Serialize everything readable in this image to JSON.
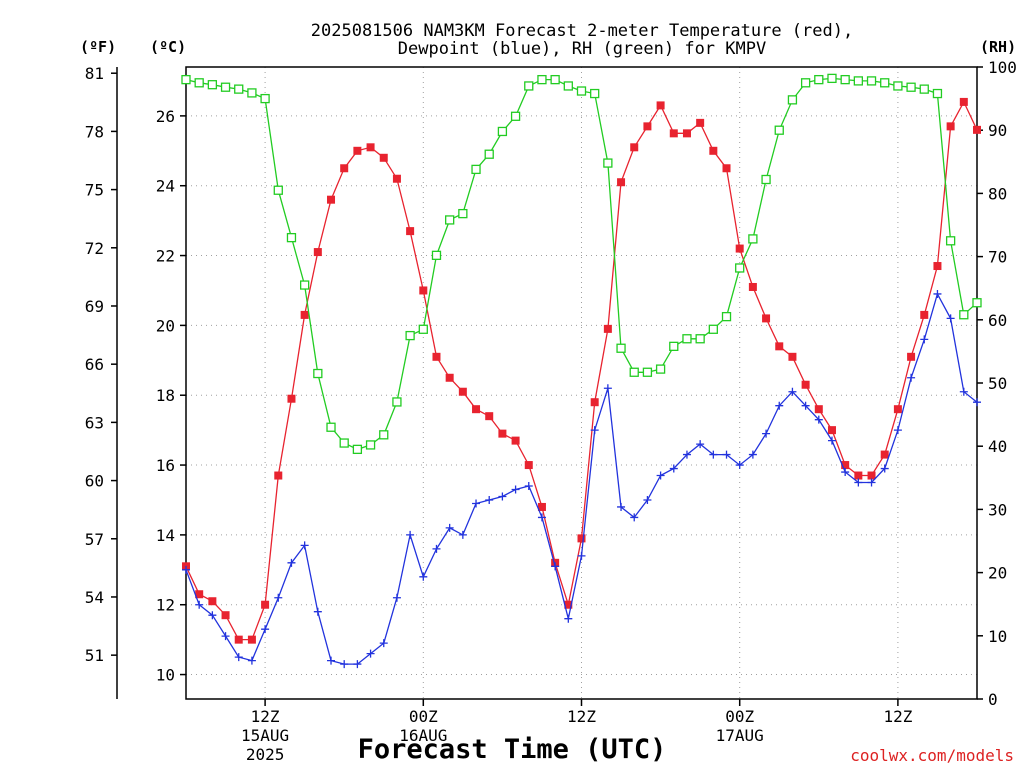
{
  "chart_data": {
    "type": "line",
    "title_line1": "2025081506 NAM3KM Forecast 2-meter Temperature (red),",
    "title_line2": "Dewpoint (blue), RH (green) for KMPV",
    "xlabel": "Forecast Time (UTC)",
    "credit": "coolwx.com/models",
    "axes": {
      "left_f": {
        "unit_label": "(ºF)",
        "ticks": [
          "51",
          "54",
          "57",
          "60",
          "63",
          "66",
          "69",
          "72",
          "75",
          "78",
          "81"
        ]
      },
      "left_c": {
        "unit_label": "(ºC)",
        "ticks": [
          "10",
          "12",
          "14",
          "16",
          "18",
          "20",
          "22",
          "24",
          "26"
        ],
        "range": [
          9.3,
          27.4
        ]
      },
      "right_rh": {
        "unit_label": "(RH)",
        "ticks": [
          "0",
          "10",
          "20",
          "30",
          "40",
          "50",
          "60",
          "70",
          "80",
          "90",
          "100"
        ],
        "range": [
          0,
          100
        ]
      }
    },
    "x_ticks": [
      {
        "hour": 12,
        "label1": "12Z",
        "label2": "15AUG",
        "label3": "2025"
      },
      {
        "hour": 24,
        "label1": "00Z",
        "label2": "16AUG",
        "label3": ""
      },
      {
        "hour": 36,
        "label1": "12Z",
        "label2": "",
        "label3": ""
      },
      {
        "hour": 48,
        "label1": "00Z",
        "label2": "17AUG",
        "label3": ""
      },
      {
        "hour": 60,
        "label1": "12Z",
        "label2": "",
        "label3": ""
      }
    ],
    "x_range": [
      6,
      66
    ],
    "colors": {
      "temperature": "#e8232f",
      "dewpoint": "#2233dd",
      "rh": "#22cc22",
      "grid": "#a0a0a0"
    },
    "series": [
      {
        "name": "Temperature",
        "axis": "left_c",
        "x": [
          6,
          7,
          8,
          9,
          10,
          11,
          12,
          13,
          14,
          15,
          16,
          17,
          18,
          19,
          20,
          21,
          22,
          23,
          24,
          25,
          26,
          27,
          28,
          29,
          30,
          31,
          32,
          33,
          34,
          35,
          36,
          37,
          38,
          39,
          40,
          41,
          42,
          43,
          44,
          45,
          46,
          47,
          48,
          49,
          50,
          51,
          52,
          53,
          54,
          55,
          56,
          57,
          58,
          59,
          60,
          61,
          62,
          63,
          64,
          65,
          66
        ],
        "values": [
          13.1,
          12.3,
          12.1,
          11.7,
          11.0,
          11.0,
          12.0,
          15.7,
          17.9,
          20.3,
          22.1,
          23.6,
          24.5,
          25.0,
          25.1,
          24.8,
          24.2,
          22.7,
          21.0,
          19.1,
          18.5,
          18.1,
          17.6,
          17.4,
          16.9,
          16.7,
          16.0,
          14.8,
          13.2,
          12.0,
          13.9,
          17.8,
          19.9,
          24.1,
          25.1,
          25.7,
          26.3,
          25.5,
          25.5,
          25.8,
          25.0,
          24.5,
          22.2,
          21.1,
          20.2,
          19.4,
          19.1,
          18.3,
          17.6,
          17.0,
          16.0,
          15.7,
          15.7,
          16.3,
          17.6,
          19.1,
          20.3,
          21.7,
          25.7,
          26.4,
          25.6
        ]
      },
      {
        "name": "Dewpoint",
        "axis": "left_c",
        "x": [
          6,
          7,
          8,
          9,
          10,
          11,
          12,
          13,
          14,
          15,
          16,
          17,
          18,
          19,
          20,
          21,
          22,
          23,
          24,
          25,
          26,
          27,
          28,
          29,
          30,
          31,
          32,
          33,
          34,
          35,
          36,
          37,
          38,
          39,
          40,
          41,
          42,
          43,
          44,
          45,
          46,
          47,
          48,
          49,
          50,
          51,
          52,
          53,
          54,
          55,
          56,
          57,
          58,
          59,
          60,
          61,
          62,
          63,
          64,
          65,
          66
        ],
        "values": [
          13.0,
          12.0,
          11.7,
          11.1,
          10.5,
          10.4,
          11.3,
          12.2,
          13.2,
          13.7,
          11.8,
          10.4,
          10.3,
          10.3,
          10.6,
          10.9,
          12.2,
          14.0,
          12.8,
          13.6,
          14.2,
          14.0,
          14.9,
          15.0,
          15.1,
          15.3,
          15.4,
          14.5,
          13.1,
          11.6,
          13.4,
          17.0,
          18.2,
          14.8,
          14.5,
          15.0,
          15.7,
          15.9,
          16.3,
          16.6,
          16.3,
          16.3,
          16.0,
          16.3,
          16.9,
          17.7,
          18.1,
          17.7,
          17.3,
          16.7,
          15.8,
          15.5,
          15.5,
          15.9,
          17.0,
          18.5,
          19.6,
          20.9,
          20.2,
          18.1,
          17.8
        ]
      },
      {
        "name": "RH",
        "axis": "right_rh",
        "x": [
          6,
          7,
          8,
          9,
          10,
          11,
          12,
          13,
          14,
          15,
          16,
          17,
          18,
          19,
          20,
          21,
          22,
          23,
          24,
          25,
          26,
          27,
          28,
          29,
          30,
          31,
          32,
          33,
          34,
          35,
          36,
          37,
          38,
          39,
          40,
          41,
          42,
          43,
          44,
          45,
          46,
          47,
          48,
          49,
          50,
          51,
          52,
          53,
          54,
          55,
          56,
          57,
          58,
          59,
          60,
          61,
          62,
          63,
          64,
          65,
          66
        ],
        "values": [
          98.0,
          97.5,
          97.2,
          96.8,
          96.5,
          95.9,
          95.0,
          80.5,
          73.0,
          65.5,
          51.5,
          43.0,
          40.5,
          39.5,
          40.2,
          41.8,
          47.0,
          57.5,
          58.5,
          70.2,
          75.8,
          76.8,
          83.8,
          86.2,
          89.8,
          92.2,
          97.0,
          98.0,
          98.0,
          97.0,
          96.2,
          95.8,
          84.8,
          55.5,
          51.7,
          51.7,
          52.2,
          55.8,
          57.0,
          57.0,
          58.5,
          60.5,
          68.2,
          72.8,
          82.2,
          90.0,
          94.8,
          97.5,
          98.0,
          98.2,
          98.0,
          97.8,
          97.8,
          97.5,
          97.0,
          96.8,
          96.5,
          95.8,
          72.5,
          60.8,
          62.7
        ]
      }
    ]
  }
}
